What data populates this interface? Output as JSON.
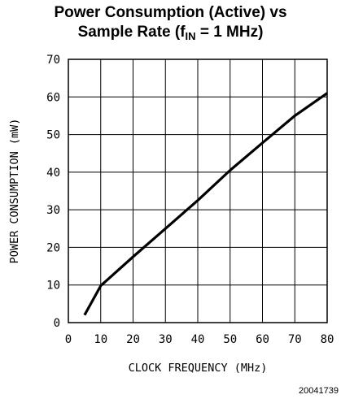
{
  "header": {
    "title_line1": "Power Consumption (Active) vs",
    "title_line2_pre": "Sample Rate (f",
    "title_sub": "IN",
    "title_line2_post": " = 1 MHz)"
  },
  "figure_number": "20041739",
  "chart_data": {
    "type": "line",
    "title": "Power Consumption (Active) vs Sample Rate (fIN = 1 MHz)",
    "xlabel": "CLOCK FREQUENCY (MHz)",
    "ylabel": "POWER CONSUMPTION (mW)",
    "xlim": [
      0,
      80
    ],
    "ylim": [
      0,
      70
    ],
    "xticks": [
      0,
      10,
      20,
      30,
      40,
      50,
      60,
      70,
      80
    ],
    "yticks": [
      0,
      10,
      20,
      30,
      40,
      50,
      60,
      70
    ],
    "grid": true,
    "line_color": "#000000",
    "series": [
      {
        "x": [
          5,
          10,
          20,
          30,
          40,
          50,
          60,
          70,
          80
        ],
        "y": [
          2,
          9.8,
          17.5,
          25,
          32.5,
          40.5,
          47.8,
          55,
          61
        ]
      }
    ]
  }
}
